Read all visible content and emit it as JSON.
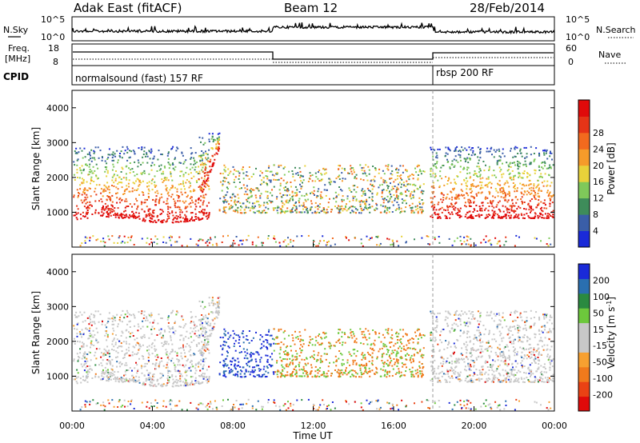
{
  "header": {
    "station": "Adak East (fitACF)",
    "beam": "Beam 12",
    "date": "28/Feb/2014"
  },
  "labels": {
    "nsky": "N.Sky",
    "nsearch": "N.Search",
    "freq_line1": "Freq.",
    "freq_line2": "[MHz]",
    "nave": "Nave",
    "cpid": "CPID",
    "cpid_1": "normalsound (fast) 157 RF",
    "cpid_2": "rbsp 200 RF",
    "noise_left_top": "10^5",
    "noise_left_bottom": "10^0",
    "noise_right_top": "10^5",
    "noise_right_bottom": "10^0",
    "freq_left_top": "18",
    "freq_left_bottom": "8",
    "nave_right_top": "60",
    "nave_right_bottom": "0"
  },
  "colors": {
    "power": [
      "#1a2ad8",
      "#3a5ea8",
      "#3e8c5a",
      "#7fc95a",
      "#e8d23a",
      "#f59b2a",
      "#f26a1e",
      "#e53417",
      "#e00a0a"
    ],
    "velocity": [
      "#1a2ad8",
      "#2a6fb0",
      "#2a8a40",
      "#6dc83c",
      "#c8c8c8",
      "#c8c8c8",
      "#f7a030",
      "#f07a1c",
      "#ea4214",
      "#e00a0a"
    ]
  },
  "chart_data": [
    {
      "type": "heatmap",
      "name": "Power",
      "xlabel": "",
      "ylabel": "Slant Range [km]",
      "xlim": [
        0,
        24
      ],
      "ylim": [
        0,
        4500
      ],
      "yticks": [
        1000,
        2000,
        3000,
        4000
      ],
      "colorbar": {
        "label": "Power [dB]",
        "ticks": [
          4,
          8,
          12,
          16,
          20,
          24,
          28
        ]
      }
    },
    {
      "type": "heatmap",
      "name": "Velocity",
      "xlabel": "Time UT",
      "ylabel": "Slant Range [km]",
      "xlim": [
        0,
        24
      ],
      "ylim": [
        0,
        4500
      ],
      "xticks": [
        "00:00",
        "04:00",
        "08:00",
        "12:00",
        "16:00",
        "20:00",
        "00:00"
      ],
      "yticks": [
        1000,
        2000,
        3000,
        4000
      ],
      "colorbar": {
        "label": "Velocity [m s^-1]",
        "ticks": [
          200,
          100,
          50,
          15,
          -15,
          -50,
          -100,
          -200
        ]
      }
    }
  ]
}
